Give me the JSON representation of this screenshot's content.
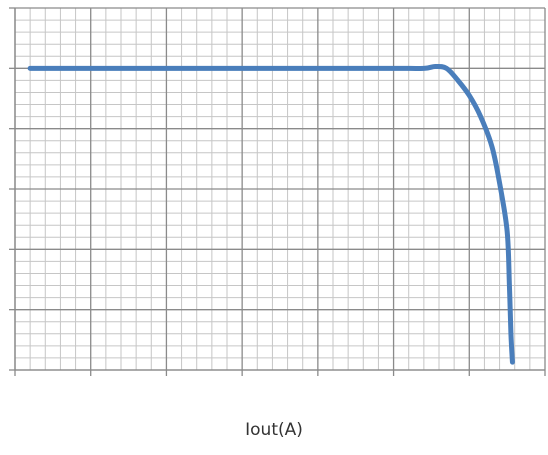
{
  "chart_data": {
    "type": "line",
    "title": "",
    "xlabel": "Iout(A)",
    "ylabel": "",
    "grid": true,
    "xlim": [
      0,
      7
    ],
    "ylim": [
      0,
      6
    ],
    "major_x_divisions": 7,
    "major_y_divisions": 6,
    "minor_per_major": 5,
    "series": [
      {
        "color": "#4a7ebb",
        "x": [
          0.2,
          1.0,
          2.0,
          3.0,
          4.0,
          5.0,
          5.4,
          5.55,
          5.7,
          5.85,
          6.0,
          6.15,
          6.3,
          6.4,
          6.5,
          6.53,
          6.55,
          6.57
        ],
        "y": [
          5.0,
          5.0,
          5.0,
          5.0,
          5.0,
          5.0,
          5.0,
          5.03,
          5.0,
          4.8,
          4.55,
          4.2,
          3.7,
          3.1,
          2.3,
          1.4,
          0.6,
          0.13
        ]
      }
    ]
  }
}
